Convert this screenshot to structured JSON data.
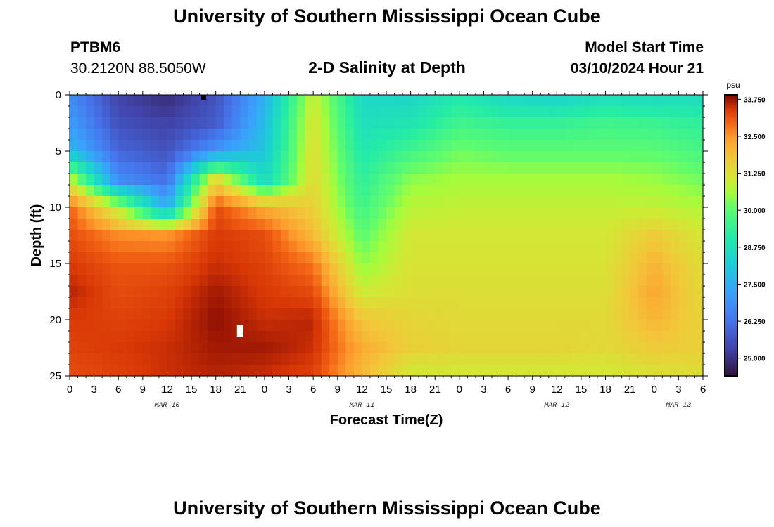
{
  "header": {
    "title_top": "University of Southern Mississippi Ocean Cube",
    "title_bottom": "University of Southern Mississippi Ocean Cube",
    "station_id": "PTBM6",
    "coordinates": "30.2120N  88.5050W",
    "subtitle": "2-D Salinity at Depth",
    "model_start_label": "Model Start Time",
    "model_start_value": "03/10/2024 Hour 21"
  },
  "chart_data": {
    "type": "heatmap",
    "title": "2-D Salinity at Depth",
    "xlabel": "Forecast Time(Z)",
    "ylabel": "Depth (ft)",
    "x_range_hours": [
      0,
      78
    ],
    "y_range_ft": [
      0,
      25
    ],
    "y_inverted": true,
    "x_tick_labels": [
      "0",
      "3",
      "6",
      "9",
      "12",
      "15",
      "18",
      "21",
      "0",
      "3",
      "6",
      "9",
      "12",
      "15",
      "18",
      "21",
      "0",
      "3",
      "6",
      "9",
      "12",
      "15",
      "18",
      "21",
      "0",
      "3",
      "6"
    ],
    "x_tick_hours": [
      0,
      3,
      6,
      9,
      12,
      15,
      18,
      21,
      24,
      27,
      30,
      33,
      36,
      39,
      42,
      45,
      48,
      51,
      54,
      57,
      60,
      63,
      66,
      69,
      72,
      75,
      78
    ],
    "day_labels": [
      {
        "label": "MAR 10",
        "hour": 12
      },
      {
        "label": "MAR 11",
        "hour": 36
      },
      {
        "label": "MAR 12",
        "hour": 60
      },
      {
        "label": "MAR 13",
        "hour": 75
      }
    ],
    "y_tick_labels": [
      "0",
      "5",
      "10",
      "15",
      "20",
      "25"
    ],
    "y_tick_values": [
      0,
      5,
      10,
      15,
      20,
      25
    ],
    "colorbar": {
      "unit": "psu",
      "min": 24.4,
      "max": 33.9,
      "tick_labels": [
        "33.750",
        "32.500",
        "31.250",
        "30.000",
        "28.750",
        "27.500",
        "26.250",
        "25.000"
      ],
      "tick_values": [
        33.75,
        32.5,
        31.25,
        30.0,
        28.75,
        27.5,
        26.25,
        25.0
      ]
    },
    "grid_hours": [
      0,
      6,
      12,
      18,
      24,
      30,
      36,
      42,
      48,
      54,
      60,
      66,
      72,
      78
    ],
    "grid_depths_ft": [
      0,
      2.5,
      5,
      7.5,
      10,
      12.5,
      15,
      17.5,
      20,
      22.5,
      25
    ],
    "salinity_grid_psu": [
      [
        26.8,
        25.3,
        24.9,
        25.6,
        27.5,
        31.0,
        28.5,
        28.4,
        29.0,
        28.4,
        28.3,
        28.6,
        28.5,
        28.6
      ],
      [
        27.2,
        25.6,
        25.3,
        25.8,
        27.8,
        31.2,
        28.7,
        28.9,
        29.6,
        29.4,
        29.4,
        29.6,
        29.5,
        29.3
      ],
      [
        27.8,
        26.0,
        25.6,
        27.0,
        28.0,
        31.3,
        29.0,
        29.6,
        30.2,
        30.0,
        30.0,
        30.0,
        30.0,
        29.7
      ],
      [
        30.9,
        26.8,
        26.2,
        31.5,
        28.5,
        31.4,
        29.3,
        30.4,
        30.6,
        30.6,
        30.6,
        30.6,
        30.5,
        30.2
      ],
      [
        33.0,
        30.8,
        27.5,
        33.2,
        32.2,
        31.6,
        29.6,
        30.8,
        30.9,
        30.9,
        30.9,
        30.9,
        30.9,
        30.7
      ],
      [
        33.2,
        32.6,
        32.5,
        33.4,
        33.2,
        32.0,
        30.0,
        31.1,
        31.1,
        31.1,
        31.1,
        31.1,
        31.7,
        31.1
      ],
      [
        33.4,
        33.1,
        33.1,
        33.5,
        33.3,
        32.8,
        30.4,
        31.2,
        31.2,
        31.2,
        31.2,
        31.2,
        32.1,
        31.3
      ],
      [
        33.6,
        33.2,
        33.3,
        33.7,
        33.4,
        33.2,
        31.0,
        31.3,
        31.3,
        31.3,
        31.3,
        31.3,
        32.3,
        31.4
      ],
      [
        33.4,
        33.3,
        33.4,
        33.8,
        33.5,
        33.6,
        31.8,
        31.5,
        31.4,
        31.4,
        31.4,
        31.4,
        32.1,
        31.5
      ],
      [
        33.3,
        33.4,
        33.5,
        33.7,
        33.7,
        33.5,
        32.2,
        31.6,
        31.5,
        31.5,
        31.5,
        31.4,
        31.7,
        31.6
      ],
      [
        33.2,
        33.3,
        33.5,
        33.6,
        33.5,
        33.3,
        32.0,
        31.0,
        31.0,
        31.0,
        31.0,
        31.0,
        31.2,
        31.3
      ]
    ],
    "markers": [
      {
        "name": "surface-marker",
        "hour": 16.5,
        "depth_ft": 0.1,
        "color": "#000000"
      },
      {
        "name": "observation-marker",
        "hour": 21,
        "depth_ft": 21,
        "color": "#ffffff"
      }
    ]
  }
}
